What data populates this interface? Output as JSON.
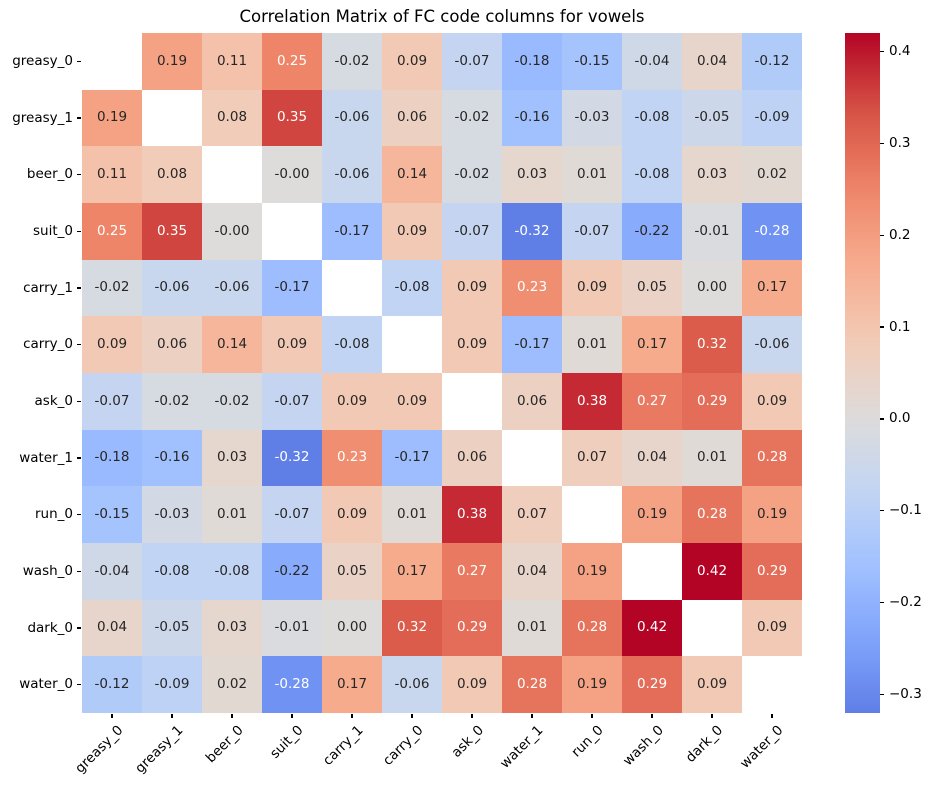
{
  "figure": {
    "background": "#ffffff"
  },
  "chart_data": {
    "type": "heatmap",
    "title": "Correlation Matrix of FC code columns for vowels",
    "labels": [
      "greasy_0",
      "greasy_1",
      "beer_0",
      "suit_0",
      "carry_1",
      "carry_0",
      "ask_0",
      "water_1",
      "run_0",
      "wash_0",
      "dark_0",
      "water_0"
    ],
    "matrix": [
      [
        "",
        "0.19",
        "0.11",
        "0.25",
        "-0.02",
        "0.09",
        "-0.07",
        "-0.18",
        "-0.15",
        "-0.04",
        "0.04",
        "-0.12"
      ],
      [
        "0.19",
        "",
        "0.08",
        "0.35",
        "-0.06",
        "0.06",
        "-0.02",
        "-0.16",
        "-0.03",
        "-0.08",
        "-0.05",
        "-0.09"
      ],
      [
        "0.11",
        "0.08",
        "",
        "-0.00",
        "-0.06",
        "0.14",
        "-0.02",
        "0.03",
        "0.01",
        "-0.08",
        "0.03",
        "0.02"
      ],
      [
        "0.25",
        "0.35",
        "-0.00",
        "",
        "-0.17",
        "0.09",
        "-0.07",
        "-0.32",
        "-0.07",
        "-0.22",
        "-0.01",
        "-0.28"
      ],
      [
        "-0.02",
        "-0.06",
        "-0.06",
        "-0.17",
        "",
        "-0.08",
        "0.09",
        "0.23",
        "0.09",
        "0.05",
        "0.00",
        "0.17"
      ],
      [
        "0.09",
        "0.06",
        "0.14",
        "0.09",
        "-0.08",
        "",
        "0.09",
        "-0.17",
        "0.01",
        "0.17",
        "0.32",
        "-0.06"
      ],
      [
        "-0.07",
        "-0.02",
        "-0.02",
        "-0.07",
        "0.09",
        "0.09",
        "",
        "0.06",
        "0.38",
        "0.27",
        "0.29",
        "0.09"
      ],
      [
        "-0.18",
        "-0.16",
        "0.03",
        "-0.32",
        "0.23",
        "-0.17",
        "0.06",
        "",
        "0.07",
        "0.04",
        "0.01",
        "0.28"
      ],
      [
        "-0.15",
        "-0.03",
        "0.01",
        "-0.07",
        "0.09",
        "0.01",
        "0.38",
        "0.07",
        "",
        "0.19",
        "0.28",
        "0.19"
      ],
      [
        "-0.04",
        "-0.08",
        "-0.08",
        "-0.22",
        "0.05",
        "0.17",
        "0.27",
        "0.04",
        "0.19",
        "",
        "0.42",
        "0.29"
      ],
      [
        "0.04",
        "-0.05",
        "0.03",
        "-0.01",
        "0.00",
        "0.32",
        "0.29",
        "0.01",
        "0.28",
        "0.42",
        "",
        "0.09"
      ],
      [
        "-0.12",
        "-0.09",
        "0.02",
        "-0.28",
        "0.17",
        "-0.06",
        "0.09",
        "0.28",
        "0.19",
        "0.29",
        "0.09",
        ""
      ]
    ],
    "diagonal_masked": true,
    "mask_color": "#ffffff",
    "colormap": "coolwarm",
    "colormap_stops": [
      {
        "t": 0.0,
        "color": "#3b4cc0"
      },
      {
        "t": 0.1,
        "color": "#5977e3"
      },
      {
        "t": 0.2,
        "color": "#7b9ff9"
      },
      {
        "t": 0.3,
        "color": "#9ebeff"
      },
      {
        "t": 0.4,
        "color": "#c0d4f5"
      },
      {
        "t": 0.5,
        "color": "#dddcdb"
      },
      {
        "t": 0.6,
        "color": "#f2cbb7"
      },
      {
        "t": 0.7,
        "color": "#f7ac8e"
      },
      {
        "t": 0.8,
        "color": "#ee8468"
      },
      {
        "t": 0.9,
        "color": "#d65244"
      },
      {
        "t": 1.0,
        "color": "#b40426"
      }
    ],
    "color_norm": {
      "center": 0,
      "vmin": -0.42,
      "vmax": 0.42
    },
    "colorbar": {
      "min": -0.32,
      "max": 0.42,
      "position": "right",
      "tick_values": [
        0.4,
        0.3,
        0.2,
        0.1,
        0.0,
        -0.1,
        -0.2,
        -0.3
      ],
      "tick_labels": [
        "0.4",
        "0.3",
        "0.2",
        "0.1",
        "0.0",
        "−0.1",
        "−0.2",
        "−0.3"
      ]
    },
    "annotation_text_dark": "#262626",
    "annotation_text_light": "#ffffff",
    "grid": false,
    "legend": false
  }
}
